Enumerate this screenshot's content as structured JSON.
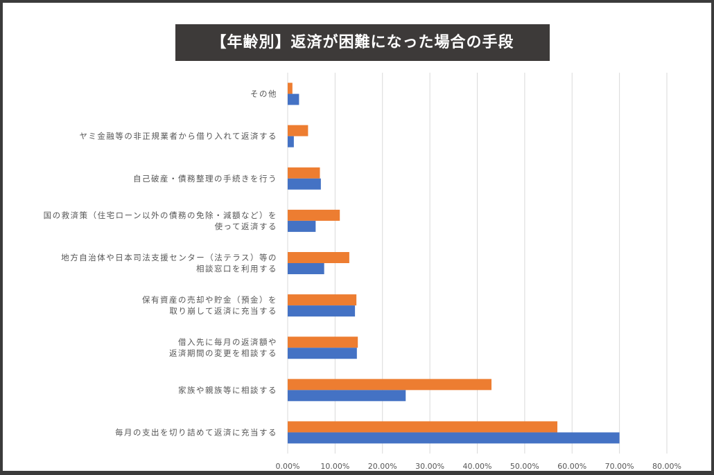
{
  "chart_data": {
    "type": "bar",
    "orientation": "horizontal",
    "title": "【年齢別】返済が困難になった場合の手段",
    "categories": [
      [
        "その他"
      ],
      [
        "ヤミ金融等の非正規業者から借り入れて返済する"
      ],
      [
        "自己破産・債務整理の手続きを行う"
      ],
      [
        "国の救済策（住宅ローン以外の債務の免除・減額など）を",
        "使って返済する"
      ],
      [
        "地方自治体や日本司法支援センター（法テラス）等の",
        "相談窓口を利用する"
      ],
      [
        "保有資産の売却や貯金（預金）を",
        "取り崩して返済に充当する"
      ],
      [
        "借入先に毎月の返済額や",
        "返済期間の変更を相談する"
      ],
      [
        "家族や親族等に相談する"
      ],
      [
        "毎月の支出を切り詰めて返済に充当する"
      ]
    ],
    "series": [
      {
        "color": "#ed7d31",
        "values": [
          1.0,
          4.3,
          6.8,
          11.0,
          13.0,
          14.5,
          14.8,
          43.0,
          56.9
        ]
      },
      {
        "color": "#4472c4",
        "values": [
          2.4,
          1.3,
          7.0,
          5.9,
          7.7,
          14.2,
          14.6,
          24.9,
          70.0
        ]
      }
    ],
    "xlim": [
      0,
      80
    ],
    "xticks": [
      "0.00%",
      "10.00%",
      "20.00%",
      "30.00%",
      "40.00%",
      "50.00%",
      "60.00%",
      "70.00%",
      "80.00%"
    ],
    "grid": true,
    "legend": "none"
  }
}
